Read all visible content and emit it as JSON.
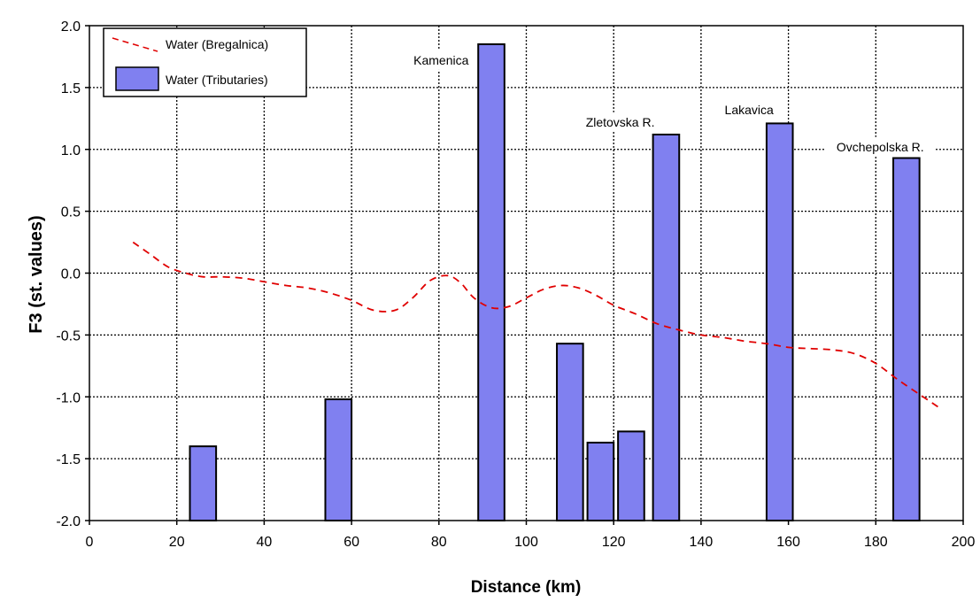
{
  "chart_data": {
    "type": "bar",
    "xlabel": "Distance (km)",
    "ylabel": "F3 (st. values)",
    "xlim": [
      0,
      200
    ],
    "ylim": [
      -2.0,
      2.0
    ],
    "x_ticks": [
      "0",
      "20",
      "40",
      "60",
      "80",
      "100",
      "120",
      "140",
      "160",
      "180",
      "200"
    ],
    "y_ticks": [
      "-2.0",
      "-1.5",
      "-1.0",
      "-0.5",
      "0.0",
      "0.5",
      "1.0",
      "1.5",
      "2.0"
    ],
    "grid": true,
    "legend_position": "top-left",
    "series": [
      {
        "name": "Water (Bregalnica)",
        "kind": "line",
        "style": "dashed",
        "color": "#e00000",
        "points": [
          [
            10,
            0.25
          ],
          [
            14,
            0.15
          ],
          [
            18,
            0.05
          ],
          [
            22,
            0.0
          ],
          [
            26,
            -0.03
          ],
          [
            30,
            -0.03
          ],
          [
            35,
            -0.04
          ],
          [
            40,
            -0.07
          ],
          [
            45,
            -0.1
          ],
          [
            50,
            -0.12
          ],
          [
            55,
            -0.16
          ],
          [
            60,
            -0.22
          ],
          [
            65,
            -0.3
          ],
          [
            70,
            -0.3
          ],
          [
            74,
            -0.2
          ],
          [
            78,
            -0.06
          ],
          [
            82,
            -0.02
          ],
          [
            85,
            -0.08
          ],
          [
            88,
            -0.2
          ],
          [
            92,
            -0.28
          ],
          [
            96,
            -0.27
          ],
          [
            100,
            -0.2
          ],
          [
            104,
            -0.13
          ],
          [
            108,
            -0.1
          ],
          [
            112,
            -0.12
          ],
          [
            116,
            -0.18
          ],
          [
            120,
            -0.26
          ],
          [
            125,
            -0.33
          ],
          [
            130,
            -0.41
          ],
          [
            135,
            -0.46
          ],
          [
            140,
            -0.5
          ],
          [
            145,
            -0.52
          ],
          [
            150,
            -0.55
          ],
          [
            155,
            -0.57
          ],
          [
            160,
            -0.6
          ],
          [
            165,
            -0.61
          ],
          [
            170,
            -0.62
          ],
          [
            175,
            -0.65
          ],
          [
            180,
            -0.73
          ],
          [
            185,
            -0.86
          ],
          [
            190,
            -0.98
          ],
          [
            195,
            -1.1
          ]
        ]
      },
      {
        "name": "Water (Tributaries)",
        "kind": "bar",
        "color": "#8080f0",
        "bars": [
          {
            "x": 26,
            "value": -1.4
          },
          {
            "x": 57,
            "value": -1.02
          },
          {
            "x": 92,
            "value": 1.85
          },
          {
            "x": 110,
            "value": -0.57
          },
          {
            "x": 117,
            "value": -1.37
          },
          {
            "x": 124,
            "value": -1.28
          },
          {
            "x": 132,
            "value": 1.12
          },
          {
            "x": 158,
            "value": 1.21
          },
          {
            "x": 187,
            "value": 0.93
          }
        ]
      }
    ],
    "annotations": [
      {
        "text": "Kamenica",
        "x": 80.5,
        "y": 1.7
      },
      {
        "text": "Zletovska R.",
        "x": 121.5,
        "y": 1.2
      },
      {
        "text": "Lakavica",
        "x": 151,
        "y": 1.3
      },
      {
        "text": "Ovchepolska R.",
        "x": 181,
        "y": 1.0
      }
    ]
  }
}
